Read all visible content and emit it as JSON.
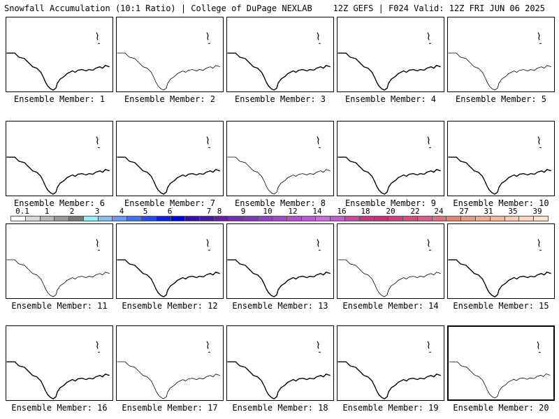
{
  "header": {
    "title_left": "Snowfall Accumulation (10:1 Ratio) | College of DuPage NEXLAB",
    "title_right": "12Z GEFS | F024 Valid: 12Z FRI JUN 06 2025"
  },
  "colorbar": {
    "labels": [
      "0.1",
      "1",
      "2",
      "3",
      "4",
      "5",
      "6",
      "7",
      "8",
      "9",
      "10",
      "12",
      "14",
      "16",
      "18",
      "20",
      "22",
      "24",
      "27",
      "31",
      "35",
      "39"
    ],
    "colors": [
      "#ffffff",
      "#d8d8d8",
      "#b8b8b8",
      "#989898",
      "#787878",
      "#98f0f0",
      "#88c0f0",
      "#6898f0",
      "#4070f0",
      "#2848f0",
      "#1020e0",
      "#0000f0",
      "#3010b0",
      "#4818a0",
      "#6020a8",
      "#7030b0",
      "#8038b8",
      "#9040c0",
      "#a048c8",
      "#b050d0",
      "#c058d8",
      "#d068e0",
      "#c060d0",
      "#c84898",
      "#c83880",
      "#c83070",
      "#d04078",
      "#d05078",
      "#d86088",
      "#e07080",
      "#e08878",
      "#e89888",
      "#f0a890",
      "#f0b8a0",
      "#f8c8b0",
      "#f8d8c0",
      "#fce4cc"
    ]
  },
  "panels": [
    {
      "label": "Ensemble Member: 1"
    },
    {
      "label": "Ensemble Member: 2"
    },
    {
      "label": "Ensemble Member: 3"
    },
    {
      "label": "Ensemble Member: 4"
    },
    {
      "label": "Ensemble Member: 5"
    },
    {
      "label": "Ensemble Member: 6"
    },
    {
      "label": "Ensemble Member: 7"
    },
    {
      "label": "Ensemble Member: 8"
    },
    {
      "label": "Ensemble Member: 9"
    },
    {
      "label": "Ensemble Member: 10"
    },
    {
      "label": "Ensemble Member: 11"
    },
    {
      "label": "Ensemble Member: 12"
    },
    {
      "label": "Ensemble Member: 13"
    },
    {
      "label": "Ensemble Member: 14"
    },
    {
      "label": "Ensemble Member: 15"
    },
    {
      "label": "Ensemble Member: 16"
    },
    {
      "label": "Ensemble Member: 17"
    },
    {
      "label": "Ensemble Member: 18"
    },
    {
      "label": "Ensemble Member: 19"
    },
    {
      "label": "Ensemble Member: 20"
    }
  ]
}
